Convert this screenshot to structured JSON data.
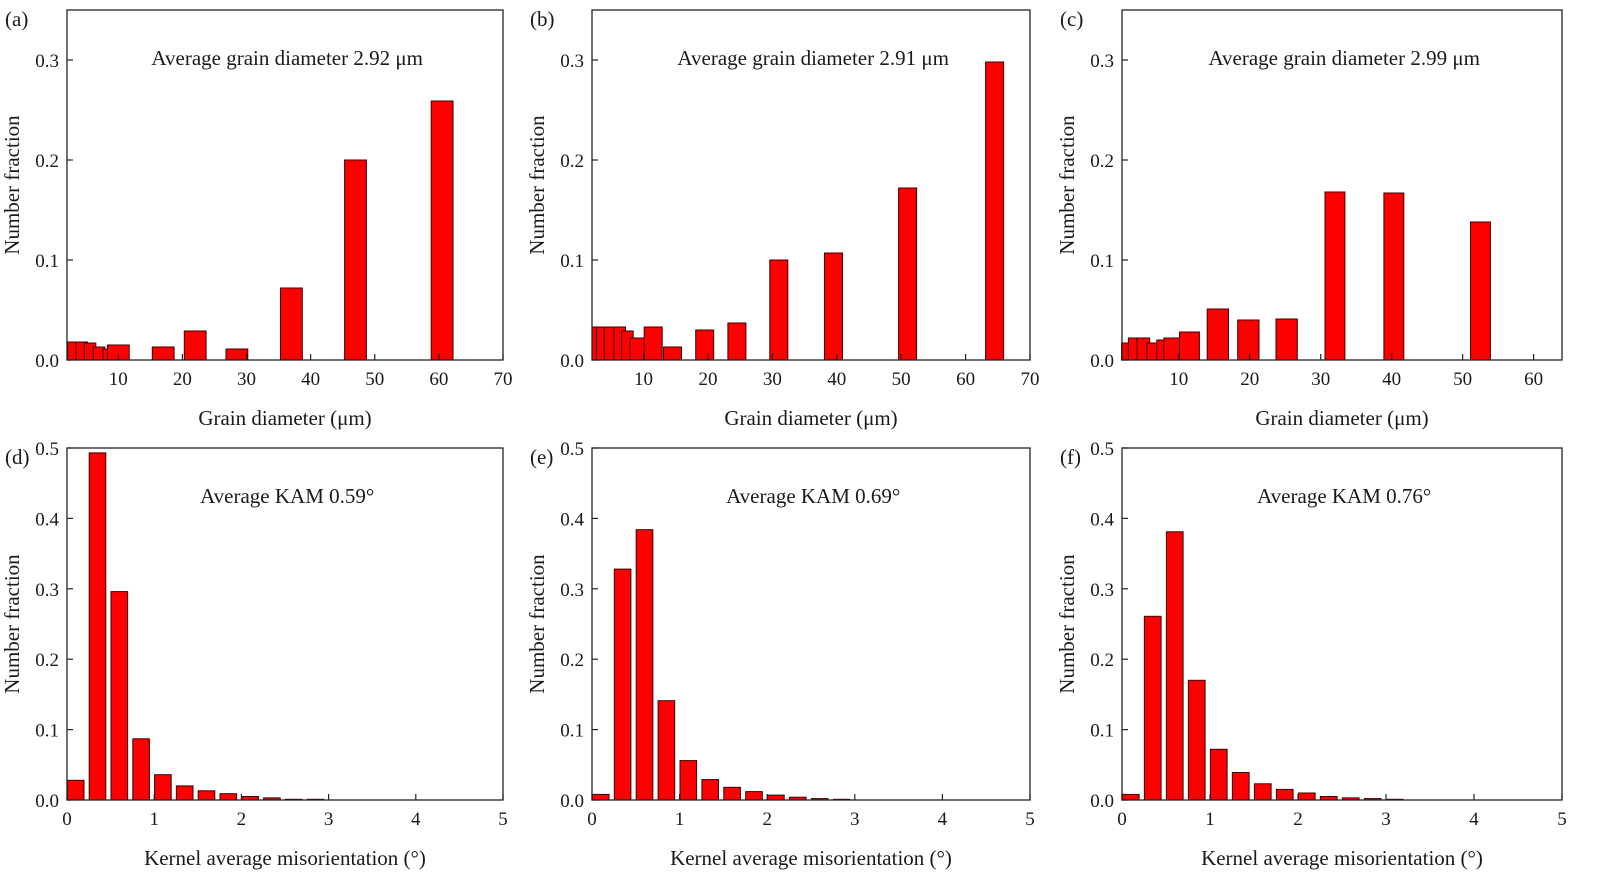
{
  "colors": {
    "bar_fill": "#ff0000",
    "bar_stroke": "#3a0000",
    "axis": "#222222"
  },
  "chart_data": [
    {
      "panel": "(a)",
      "type": "bar",
      "annotation": "Average grain diameter 2.92 μm",
      "xlabel": "Grain diameter (μm)",
      "ylabel": "Number fraction",
      "xlim": [
        2,
        70
      ],
      "ylim": [
        0,
        0.35
      ],
      "xticks": [
        10,
        20,
        30,
        40,
        50,
        60,
        70
      ],
      "xtick_labels": [
        "10",
        "20",
        "30",
        "40",
        "50",
        "60",
        "70"
      ],
      "yticks": [
        0.0,
        0.1,
        0.2,
        0.3
      ],
      "ytick_labels": [
        "0.0",
        "0.1",
        "0.2",
        "0.3"
      ],
      "bars": [
        {
          "x": 3.0,
          "w": 1.8,
          "v": 0.018
        },
        {
          "x": 4.3,
          "w": 1.8,
          "v": 0.018
        },
        {
          "x": 5.6,
          "w": 1.8,
          "v": 0.017
        },
        {
          "x": 7.0,
          "w": 1.8,
          "v": 0.013
        },
        {
          "x": 8.5,
          "w": 1.8,
          "v": 0.011
        },
        {
          "x": 10.0,
          "w": 3.4,
          "v": 0.015
        },
        {
          "x": 17.0,
          "w": 3.4,
          "v": 0.013
        },
        {
          "x": 22.0,
          "w": 3.4,
          "v": 0.029
        },
        {
          "x": 28.5,
          "w": 3.4,
          "v": 0.011
        },
        {
          "x": 37.0,
          "w": 3.4,
          "v": 0.072
        },
        {
          "x": 47.0,
          "w": 3.4,
          "v": 0.2
        },
        {
          "x": 60.5,
          "w": 3.4,
          "v": 0.259
        }
      ]
    },
    {
      "panel": "(b)",
      "type": "bar",
      "annotation": "Average grain diameter 2.91 μm",
      "xlabel": "Grain diameter (μm)",
      "ylabel": "Number fraction",
      "xlim": [
        2,
        70
      ],
      "ylim": [
        0,
        0.35
      ],
      "xticks": [
        10,
        20,
        30,
        40,
        50,
        60,
        70
      ],
      "xtick_labels": [
        "10",
        "20",
        "30",
        "40",
        "50",
        "60",
        "70"
      ],
      "yticks": [
        0.0,
        0.1,
        0.2,
        0.3
      ],
      "ytick_labels": [
        "0.0",
        "0.1",
        "0.2",
        "0.3"
      ],
      "bars": [
        {
          "x": 2.6,
          "w": 1.2,
          "v": 0.033
        },
        {
          "x": 3.5,
          "w": 1.6,
          "v": 0.033
        },
        {
          "x": 4.8,
          "w": 1.8,
          "v": 0.033
        },
        {
          "x": 6.3,
          "w": 1.8,
          "v": 0.033
        },
        {
          "x": 7.5,
          "w": 1.8,
          "v": 0.029
        },
        {
          "x": 9.0,
          "w": 2.2,
          "v": 0.022
        },
        {
          "x": 11.5,
          "w": 2.8,
          "v": 0.033
        },
        {
          "x": 14.5,
          "w": 2.8,
          "v": 0.013
        },
        {
          "x": 19.5,
          "w": 2.8,
          "v": 0.03
        },
        {
          "x": 24.5,
          "w": 2.8,
          "v": 0.037
        },
        {
          "x": 31.0,
          "w": 2.8,
          "v": 0.1
        },
        {
          "x": 39.5,
          "w": 2.8,
          "v": 0.107
        },
        {
          "x": 51.0,
          "w": 2.8,
          "v": 0.172
        },
        {
          "x": 64.5,
          "w": 2.8,
          "v": 0.298
        }
      ]
    },
    {
      "panel": "(c)",
      "type": "bar",
      "annotation": "Average grain diameter 2.99 μm",
      "xlabel": "Grain diameter (μm)",
      "ylabel": "Number fraction",
      "xlim": [
        2,
        64
      ],
      "ylim": [
        0,
        0.35
      ],
      "xticks": [
        10,
        20,
        30,
        40,
        50,
        60
      ],
      "xtick_labels": [
        "10",
        "20",
        "30",
        "40",
        "50",
        "60"
      ],
      "yticks": [
        0.0,
        0.1,
        0.2,
        0.3
      ],
      "ytick_labels": [
        "0.0",
        "0.1",
        "0.2",
        "0.3"
      ],
      "bars": [
        {
          "x": 2.6,
          "w": 1.3,
          "v": 0.017
        },
        {
          "x": 3.7,
          "w": 1.6,
          "v": 0.022
        },
        {
          "x": 5.0,
          "w": 1.8,
          "v": 0.022
        },
        {
          "x": 6.4,
          "w": 1.8,
          "v": 0.017
        },
        {
          "x": 7.8,
          "w": 1.8,
          "v": 0.02
        },
        {
          "x": 9.2,
          "w": 2.6,
          "v": 0.022
        },
        {
          "x": 11.5,
          "w": 2.8,
          "v": 0.028
        },
        {
          "x": 15.5,
          "w": 3.0,
          "v": 0.051
        },
        {
          "x": 19.8,
          "w": 3.0,
          "v": 0.04
        },
        {
          "x": 25.2,
          "w": 3.0,
          "v": 0.041
        },
        {
          "x": 32.0,
          "w": 2.8,
          "v": 0.168
        },
        {
          "x": 40.3,
          "w": 2.8,
          "v": 0.167
        },
        {
          "x": 52.5,
          "w": 2.8,
          "v": 0.138
        }
      ]
    },
    {
      "panel": "(d)",
      "type": "bar",
      "annotation": "Average KAM 0.59°",
      "xlabel": "Kernel average misorientation (°)",
      "ylabel": "Number fraction",
      "xlim": [
        0,
        5
      ],
      "ylim": [
        0,
        0.5
      ],
      "xticks": [
        0,
        1,
        2,
        3,
        4,
        5
      ],
      "xtick_labels": [
        "0",
        "1",
        "2",
        "3",
        "4",
        "5"
      ],
      "yticks": [
        0.0,
        0.1,
        0.2,
        0.3,
        0.4,
        0.5
      ],
      "ytick_labels": [
        "0.0",
        "0.1",
        "0.2",
        "0.3",
        "0.4",
        "0.5"
      ],
      "bin_width": 0.2,
      "bar_width": 0.19,
      "bin_centers": [
        0.1,
        0.35,
        0.6,
        0.85,
        1.1,
        1.35,
        1.6,
        1.85,
        2.1,
        2.35,
        2.6,
        2.85
      ],
      "values": [
        0.028,
        0.493,
        0.296,
        0.087,
        0.036,
        0.02,
        0.013,
        0.009,
        0.005,
        0.003,
        0.001,
        0.001
      ]
    },
    {
      "panel": "(e)",
      "type": "bar",
      "annotation": "Average KAM 0.69°",
      "xlabel": "Kernel average misorientation (°)",
      "ylabel": "Number fraction",
      "xlim": [
        0,
        5
      ],
      "ylim": [
        0,
        0.5
      ],
      "xticks": [
        0,
        1,
        2,
        3,
        4,
        5
      ],
      "xtick_labels": [
        "0",
        "1",
        "2",
        "3",
        "4",
        "5"
      ],
      "yticks": [
        0.0,
        0.1,
        0.2,
        0.3,
        0.4,
        0.5
      ],
      "ytick_labels": [
        "0.0",
        "0.1",
        "0.2",
        "0.3",
        "0.4",
        "0.5"
      ],
      "bin_width": 0.2,
      "bar_width": 0.19,
      "bin_centers": [
        0.1,
        0.35,
        0.6,
        0.85,
        1.1,
        1.35,
        1.6,
        1.85,
        2.1,
        2.35,
        2.6,
        2.85
      ],
      "values": [
        0.008,
        0.328,
        0.384,
        0.141,
        0.056,
        0.029,
        0.018,
        0.012,
        0.007,
        0.004,
        0.002,
        0.001
      ]
    },
    {
      "panel": "(f)",
      "type": "bar",
      "annotation": "Average KAM 0.76°",
      "xlabel": "Kernel average misorientation (°)",
      "ylabel": "Number fraction",
      "xlim": [
        0,
        5
      ],
      "ylim": [
        0,
        0.5
      ],
      "xticks": [
        0,
        1,
        2,
        3,
        4,
        5
      ],
      "xtick_labels": [
        "0",
        "1",
        "2",
        "3",
        "4",
        "5"
      ],
      "yticks": [
        0.0,
        0.1,
        0.2,
        0.3,
        0.4,
        0.5
      ],
      "ytick_labels": [
        "0.0",
        "0.1",
        "0.2",
        "0.3",
        "0.4",
        "0.5"
      ],
      "bin_width": 0.2,
      "bar_width": 0.19,
      "bin_centers": [
        0.1,
        0.35,
        0.6,
        0.85,
        1.1,
        1.35,
        1.6,
        1.85,
        2.1,
        2.35,
        2.6,
        2.85,
        3.1
      ],
      "values": [
        0.008,
        0.261,
        0.381,
        0.17,
        0.072,
        0.039,
        0.023,
        0.015,
        0.01,
        0.005,
        0.003,
        0.002,
        0.001
      ]
    }
  ]
}
